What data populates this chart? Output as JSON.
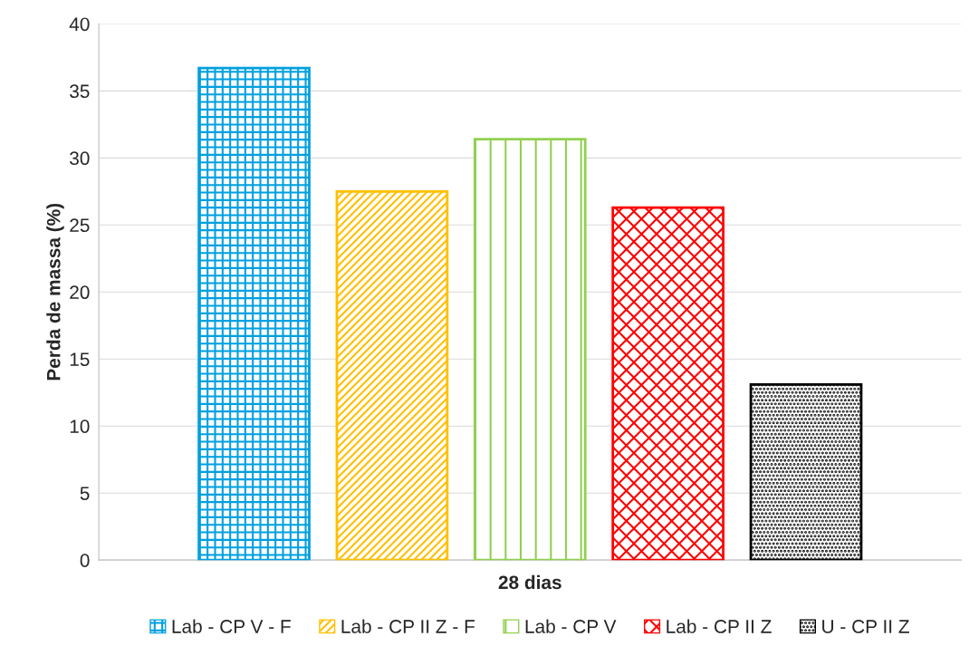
{
  "chart_data": {
    "type": "bar",
    "ylabel": "Perda de massa (%)",
    "categories": [
      "28 dias"
    ],
    "series": [
      {
        "name": "Lab - CP V - F",
        "color": "#00a0e0",
        "values": [
          36.7
        ]
      },
      {
        "name": "Lab - CP II Z - F",
        "color": "#ffc000",
        "values": [
          27.5
        ]
      },
      {
        "name": "Lab - CP V",
        "color": "#92d050",
        "values": [
          31.4
        ]
      },
      {
        "name": "Lab - CP II Z",
        "color": "#ff0000",
        "values": [
          26.3
        ]
      },
      {
        "name": "U - CP II Z",
        "color": "#000000",
        "values": [
          13.1
        ]
      }
    ],
    "ylim": [
      0,
      40
    ],
    "yticks": [
      0,
      5,
      10,
      15,
      20,
      25,
      30,
      35,
      40
    ],
    "grid": "y",
    "legend": "bottom"
  }
}
